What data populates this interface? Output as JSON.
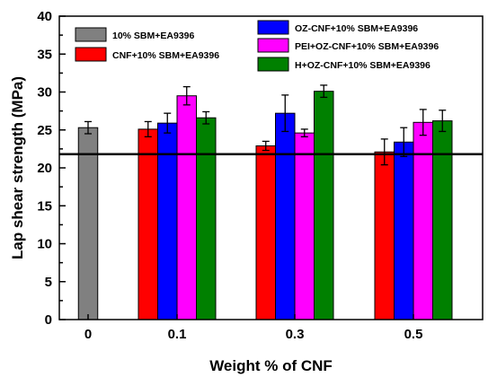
{
  "chart_data": {
    "type": "bar",
    "title": "",
    "xlabel": "Weight % of CNF",
    "ylabel": "Lap shear strength (MPa)",
    "ylim": [
      0,
      40
    ],
    "yticks": [
      "0",
      "5",
      "10",
      "15",
      "20",
      "25",
      "30",
      "35",
      "40"
    ],
    "categories": [
      "0",
      "0.1",
      "0.3",
      "0.5"
    ],
    "reference_line": 21.8,
    "series": [
      {
        "name": "10% SBM+EA9396",
        "color": "#808080",
        "values": [
          25.3,
          null,
          null,
          null
        ],
        "errors": [
          0.8,
          null,
          null,
          null
        ]
      },
      {
        "name": "CNF+10% SBM+EA9396",
        "color": "#ff0000",
        "values": [
          null,
          25.1,
          22.9,
          22.1
        ],
        "errors": [
          null,
          1.0,
          0.6,
          1.7
        ]
      },
      {
        "name": "OZ-CNF+10% SBM+EA9396",
        "color": "#0000ff",
        "values": [
          null,
          25.9,
          27.2,
          23.4
        ],
        "errors": [
          null,
          1.3,
          2.4,
          1.9
        ]
      },
      {
        "name": "PEI+OZ-CNF+10% SBM+EA9396",
        "color": "#ff00ff",
        "values": [
          null,
          29.5,
          24.6,
          26.0
        ],
        "errors": [
          null,
          1.2,
          0.5,
          1.7
        ]
      },
      {
        "name": "H+OZ-CNF+10% SBM+EA9396",
        "color": "#008000",
        "values": [
          null,
          26.6,
          30.1,
          26.2
        ],
        "errors": [
          null,
          0.8,
          0.8,
          1.4
        ]
      }
    ],
    "legend": [
      {
        "label": "10% SBM+EA9396",
        "color": "#808080"
      },
      {
        "label": "CNF+10% SBM+EA9396",
        "color": "#ff0000"
      },
      {
        "label": "OZ-CNF+10% SBM+EA9396",
        "color": "#0000ff"
      },
      {
        "label": "PEI+OZ-CNF+10% SBM+EA9396",
        "color": "#ff00ff"
      },
      {
        "label": "H+OZ-CNF+10% SBM+EA9396",
        "color": "#008000"
      }
    ],
    "grid": false
  }
}
